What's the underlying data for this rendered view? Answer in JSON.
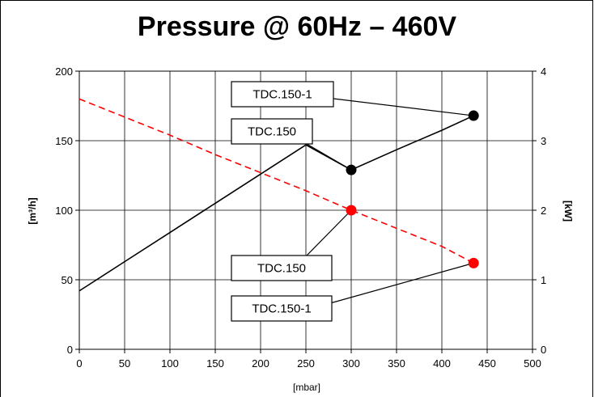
{
  "chart_data": {
    "type": "line",
    "title": "Pressure @ 60Hz – 460V",
    "xlabel": "[mbar]",
    "ylabel_left": "[m³/h]",
    "ylabel_right": "[kW]",
    "xlim": [
      0,
      500
    ],
    "ylim_left": [
      0,
      200
    ],
    "ylim_right": [
      0,
      4
    ],
    "x_ticks": [
      "0",
      "50",
      "100",
      "150",
      "200",
      "250",
      "300",
      "350",
      "400",
      "450",
      "500"
    ],
    "y_left_ticks": [
      "0",
      "50",
      "100",
      "150",
      "200"
    ],
    "y_right_ticks": [
      "0",
      "1",
      "2",
      "3",
      "4"
    ],
    "grid": true,
    "series": [
      {
        "axis": "left",
        "color": "#ff0000",
        "style": "dashed",
        "x": [
          0,
          50,
          100,
          150,
          200,
          250,
          300,
          350,
          400,
          435
        ],
        "values": [
          180,
          167,
          154,
          140,
          127,
          114,
          100,
          87,
          74,
          62
        ]
      },
      {
        "axis": "right",
        "color": "#000000",
        "style": "solid",
        "x": [
          0,
          50,
          100,
          150,
          200,
          250,
          300,
          350,
          400,
          435
        ],
        "values": [
          0.84,
          1.26,
          1.68,
          2.1,
          2.52,
          2.94,
          2.58,
          2.87,
          3.15,
          3.36
        ]
      }
    ],
    "markers": [
      {
        "series": 0,
        "x": 300,
        "y": 100,
        "color": "#ff0000"
      },
      {
        "series": 0,
        "x": 435,
        "y": 62,
        "color": "#ff0000"
      },
      {
        "series": 1,
        "x": 300,
        "y": 2.58,
        "color": "#000000"
      },
      {
        "series": 1,
        "x": 435,
        "y": 3.36,
        "color": "#000000"
      }
    ],
    "annotations": [
      {
        "text": "TDC.150-1",
        "target_marker": 3
      },
      {
        "text": "TDC.150",
        "target_marker": 2
      },
      {
        "text": "TDC.150",
        "target_marker": 0
      },
      {
        "text": "TDC.150-1",
        "target_marker": 1
      }
    ]
  }
}
